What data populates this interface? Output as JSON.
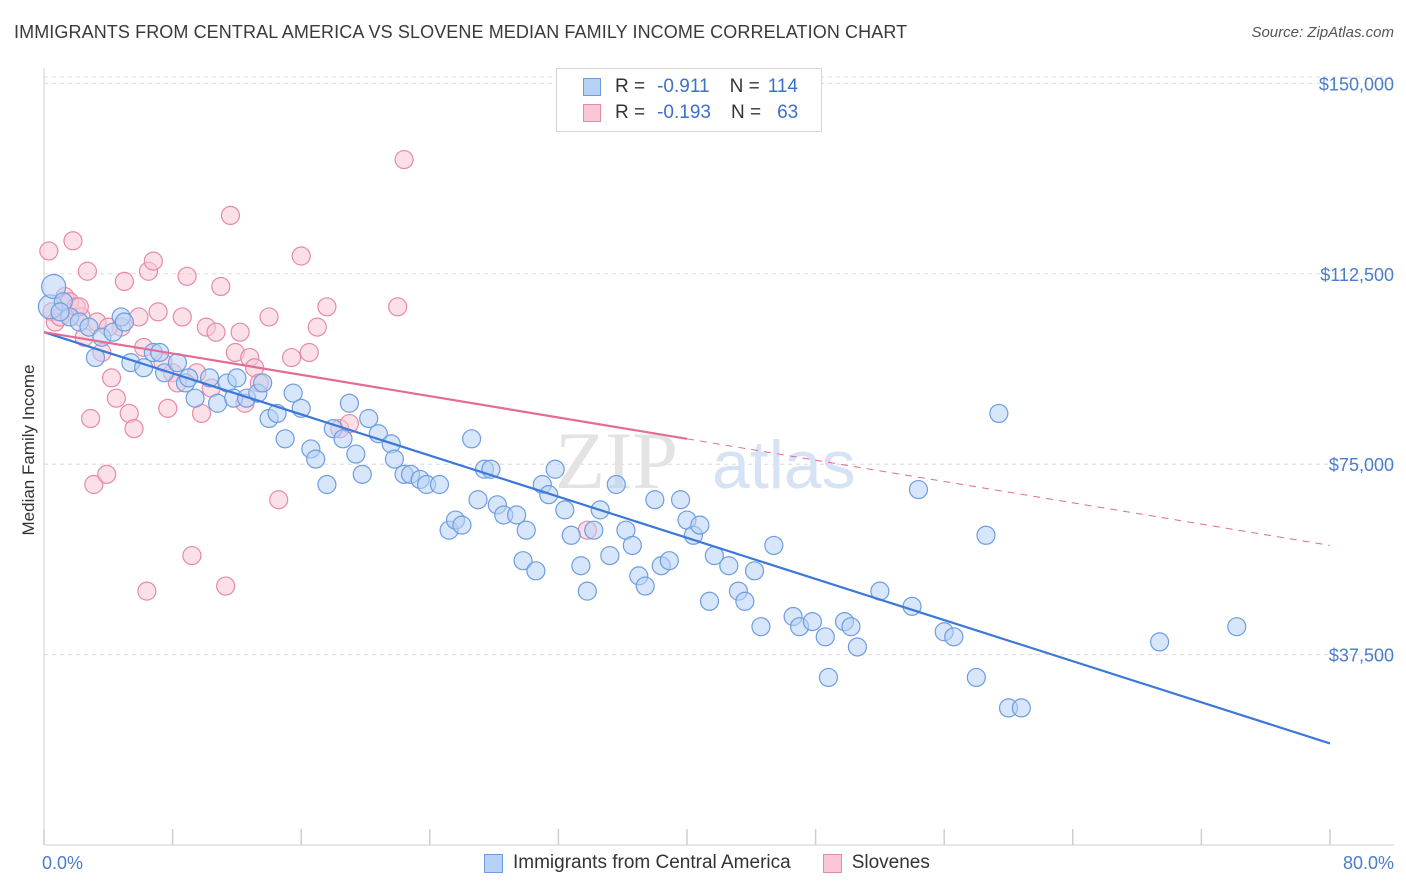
{
  "title": "IMMIGRANTS FROM CENTRAL AMERICA VS SLOVENE MEDIAN FAMILY INCOME CORRELATION CHART",
  "source": "Source: ZipAtlas.com",
  "watermark": {
    "zip": "ZIP",
    "atlas": "atlas"
  },
  "legend": {
    "r_label": "R =",
    "n_label": "N =",
    "rows": [
      {
        "swatch_fill": "#b7d1f5",
        "swatch_stroke": "#6d9de0",
        "r": "-0.911",
        "n": "114"
      },
      {
        "swatch_fill": "#f9c6d6",
        "swatch_stroke": "#e58aa9",
        "r": "-0.193",
        "n": "63"
      }
    ]
  },
  "bottom_legend": [
    {
      "label": "Immigrants from Central America",
      "fill": "#b7d1f5",
      "stroke": "#6d9de0"
    },
    {
      "label": "Slovenes",
      "fill": "#f9c6d6",
      "stroke": "#e58aa9"
    }
  ],
  "chart_data": {
    "type": "scatter",
    "title": "IMMIGRANTS FROM CENTRAL AMERICA VS SLOVENE MEDIAN FAMILY INCOME CORRELATION CHART",
    "xlabel": "",
    "ylabel": "Median Family Income",
    "xlim": [
      0,
      80
    ],
    "ylim": [
      0,
      155000
    ],
    "x_tick_labels": [
      "0.0%",
      "80.0%"
    ],
    "y_ticks": [
      37500,
      75000,
      112500,
      150000
    ],
    "y_tick_labels": [
      "$37,500",
      "$75,000",
      "$112,500",
      "$150,000"
    ],
    "grid": "horizontal dashed",
    "legend_position": "top-center",
    "series": [
      {
        "name": "Immigrants from Central America",
        "color": "#3b78d8",
        "fill": "#b7d1f5",
        "stroke": "#6d9de0",
        "trend": {
          "x0": 0,
          "y0": 101000,
          "x1": 80,
          "y1": 20000,
          "dashed_from": null
        },
        "points": [
          [
            0.4,
            106000
          ],
          [
            0.6,
            110000
          ],
          [
            1.2,
            107000
          ],
          [
            1.6,
            104000
          ],
          [
            2.2,
            103000
          ],
          [
            2.8,
            102000
          ],
          [
            3.6,
            100000
          ],
          [
            4.3,
            101000
          ],
          [
            4.8,
            104000
          ],
          [
            3.2,
            96000
          ],
          [
            5.4,
            95000
          ],
          [
            6.2,
            94000
          ],
          [
            6.8,
            97000
          ],
          [
            7.5,
            93000
          ],
          [
            8.3,
            95000
          ],
          [
            8.8,
            91000
          ],
          [
            9.4,
            88000
          ],
          [
            10.3,
            92000
          ],
          [
            10.8,
            87000
          ],
          [
            11.4,
            91000
          ],
          [
            11.8,
            88000
          ],
          [
            12.6,
            88000
          ],
          [
            13.3,
            89000
          ],
          [
            13.6,
            91000
          ],
          [
            14.0,
            84000
          ],
          [
            14.5,
            85000
          ],
          [
            15.0,
            80000
          ],
          [
            15.5,
            89000
          ],
          [
            16.0,
            86000
          ],
          [
            16.6,
            78000
          ],
          [
            16.9,
            76000
          ],
          [
            17.6,
            71000
          ],
          [
            18.0,
            82000
          ],
          [
            18.6,
            80000
          ],
          [
            19.0,
            87000
          ],
          [
            19.4,
            77000
          ],
          [
            19.8,
            73000
          ],
          [
            20.2,
            84000
          ],
          [
            20.8,
            81000
          ],
          [
            21.6,
            79000
          ],
          [
            21.8,
            76000
          ],
          [
            22.4,
            73000
          ],
          [
            22.8,
            73000
          ],
          [
            23.4,
            72000
          ],
          [
            23.8,
            71000
          ],
          [
            24.6,
            71000
          ],
          [
            25.2,
            62000
          ],
          [
            25.6,
            64000
          ],
          [
            26.0,
            63000
          ],
          [
            26.6,
            80000
          ],
          [
            27.0,
            68000
          ],
          [
            27.4,
            74000
          ],
          [
            27.8,
            74000
          ],
          [
            28.2,
            67000
          ],
          [
            28.6,
            65000
          ],
          [
            29.4,
            65000
          ],
          [
            29.8,
            56000
          ],
          [
            30.0,
            62000
          ],
          [
            30.6,
            54000
          ],
          [
            31.0,
            71000
          ],
          [
            31.4,
            69000
          ],
          [
            31.8,
            74000
          ],
          [
            32.4,
            66000
          ],
          [
            32.8,
            61000
          ],
          [
            33.4,
            55000
          ],
          [
            33.8,
            50000
          ],
          [
            34.2,
            62000
          ],
          [
            34.6,
            66000
          ],
          [
            35.2,
            57000
          ],
          [
            35.6,
            71000
          ],
          [
            36.2,
            62000
          ],
          [
            36.6,
            59000
          ],
          [
            37.0,
            53000
          ],
          [
            37.4,
            51000
          ],
          [
            38.0,
            68000
          ],
          [
            38.4,
            55000
          ],
          [
            38.9,
            56000
          ],
          [
            39.6,
            68000
          ],
          [
            40.0,
            64000
          ],
          [
            40.4,
            61000
          ],
          [
            40.8,
            63000
          ],
          [
            41.4,
            48000
          ],
          [
            41.7,
            57000
          ],
          [
            42.6,
            55000
          ],
          [
            43.2,
            50000
          ],
          [
            43.6,
            48000
          ],
          [
            44.2,
            54000
          ],
          [
            44.6,
            43000
          ],
          [
            45.4,
            59000
          ],
          [
            46.6,
            45000
          ],
          [
            47.0,
            43000
          ],
          [
            47.8,
            44000
          ],
          [
            48.6,
            41000
          ],
          [
            48.8,
            33000
          ],
          [
            49.8,
            44000
          ],
          [
            50.2,
            43000
          ],
          [
            50.6,
            39000
          ],
          [
            52.0,
            50000
          ],
          [
            54.0,
            47000
          ],
          [
            54.4,
            70000
          ],
          [
            56.0,
            42000
          ],
          [
            56.6,
            41000
          ],
          [
            58.0,
            33000
          ],
          [
            58.6,
            61000
          ],
          [
            59.4,
            85000
          ],
          [
            60.0,
            27000
          ],
          [
            60.8,
            27000
          ],
          [
            69.4,
            40000
          ],
          [
            74.2,
            43000
          ],
          [
            5.0,
            103000
          ],
          [
            7.2,
            97000
          ],
          [
            9.0,
            92000
          ],
          [
            12.0,
            92000
          ],
          [
            1.0,
            105000
          ]
        ]
      },
      {
        "name": "Slovenes",
        "color": "#e46b93",
        "fill": "#f9c6d6",
        "stroke": "#e58aa9",
        "trend": {
          "x0": 0,
          "y0": 101000,
          "x1": 80,
          "y1": 59000,
          "dashed_from": 40
        },
        "points": [
          [
            0.3,
            117000
          ],
          [
            0.5,
            105000
          ],
          [
            0.7,
            103000
          ],
          [
            1.0,
            104000
          ],
          [
            1.3,
            108000
          ],
          [
            1.6,
            107000
          ],
          [
            1.8,
            119000
          ],
          [
            2.0,
            106000
          ],
          [
            2.3,
            104000
          ],
          [
            2.5,
            100000
          ],
          [
            2.7,
            113000
          ],
          [
            2.9,
            84000
          ],
          [
            3.1,
            71000
          ],
          [
            3.3,
            103000
          ],
          [
            3.6,
            97000
          ],
          [
            3.9,
            73000
          ],
          [
            4.2,
            92000
          ],
          [
            4.5,
            88000
          ],
          [
            4.8,
            102000
          ],
          [
            5.0,
            111000
          ],
          [
            5.3,
            85000
          ],
          [
            5.6,
            82000
          ],
          [
            5.9,
            104000
          ],
          [
            6.2,
            98000
          ],
          [
            6.5,
            113000
          ],
          [
            6.8,
            115000
          ],
          [
            7.1,
            105000
          ],
          [
            7.4,
            95000
          ],
          [
            7.7,
            86000
          ],
          [
            8.0,
            93000
          ],
          [
            8.3,
            91000
          ],
          [
            8.6,
            104000
          ],
          [
            8.9,
            112000
          ],
          [
            9.2,
            57000
          ],
          [
            9.5,
            93000
          ],
          [
            9.8,
            85000
          ],
          [
            10.1,
            102000
          ],
          [
            10.4,
            90000
          ],
          [
            10.7,
            101000
          ],
          [
            11.0,
            110000
          ],
          [
            11.3,
            51000
          ],
          [
            11.6,
            124000
          ],
          [
            11.9,
            97000
          ],
          [
            12.2,
            101000
          ],
          [
            12.5,
            87000
          ],
          [
            12.8,
            96000
          ],
          [
            13.1,
            94000
          ],
          [
            13.4,
            91000
          ],
          [
            14.0,
            104000
          ],
          [
            14.6,
            68000
          ],
          [
            15.4,
            96000
          ],
          [
            16.0,
            116000
          ],
          [
            16.5,
            97000
          ],
          [
            17.0,
            102000
          ],
          [
            17.6,
            106000
          ],
          [
            18.4,
            82000
          ],
          [
            19.0,
            83000
          ],
          [
            22.0,
            106000
          ],
          [
            22.4,
            135000
          ],
          [
            33.8,
            62000
          ],
          [
            6.4,
            50000
          ],
          [
            4.0,
            102000
          ],
          [
            2.2,
            106000
          ]
        ]
      }
    ]
  }
}
